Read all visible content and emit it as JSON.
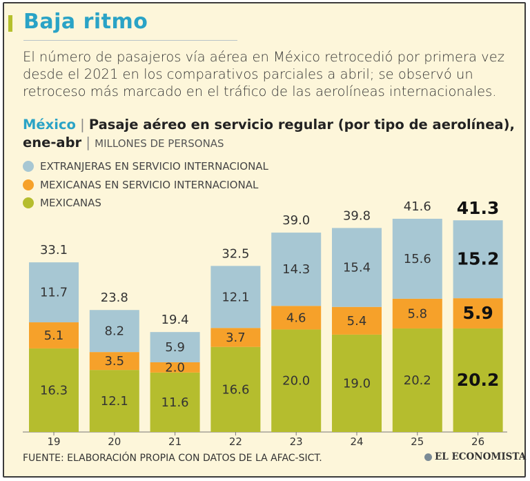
{
  "header": {
    "title": "Baja ritmo",
    "subtitle": "El número de pasajeros vía aérea en México retrocedió por primera vez desde el 2021 en los comparativos parciales a abril; se observó un retroceso más marcado en el tráfico de las aerolíneas internacionales."
  },
  "chart_heading": {
    "geo": "México",
    "separator": "|",
    "strong": "Pasaje aéreo en servicio regular (por tipo de aerolínea), ene-abr",
    "separator2": "|",
    "units": "MILLONES DE PERSONAS"
  },
  "footer": {
    "source": "FUENTE: ELABORACIÓN PROPIA CON DATOS DE LA AFAC-SICT.",
    "logo_text": "EL ECONOMISTA"
  },
  "colors": {
    "title": "#2aa3c6",
    "accent": "#b5c02c",
    "geo": "#2aa3c6",
    "extranjeras": "#a7c7d3",
    "mexicanas_internacional": "#f6a12a",
    "mexicanas": "#b5bd2e",
    "axis": "#777777"
  },
  "chart_data": {
    "type": "bar",
    "stacked": true,
    "categories": [
      "19",
      "20",
      "21",
      "22",
      "23",
      "24",
      "25",
      "26"
    ],
    "series": [
      {
        "key": "mexicanas",
        "name": "MEXICANAS",
        "values": [
          16.3,
          12.1,
          11.6,
          16.6,
          20.0,
          19.0,
          20.2,
          20.2
        ]
      },
      {
        "key": "mexicanas_internacional",
        "name": "MEXICANAS EN SERVICIO INTERNACIONAL",
        "values": [
          5.1,
          3.5,
          2.0,
          3.7,
          4.6,
          5.4,
          5.8,
          5.9
        ]
      },
      {
        "key": "extranjeras",
        "name": "EXTRANJERAS EN SERVICIO INTERNACIONAL",
        "values": [
          11.7,
          8.2,
          5.9,
          12.1,
          14.3,
          15.4,
          15.6,
          15.2
        ]
      }
    ],
    "totals": [
      33.1,
      23.8,
      19.4,
      32.5,
      39.0,
      39.8,
      41.6,
      41.3
    ],
    "value_labels": {
      "mexicanas": [
        "16.3",
        "12.1",
        "11.6",
        "16.6",
        "20.0",
        "19.0",
        "20.2",
        "20.2"
      ],
      "mexicanas_internacional": [
        "5.1",
        "3.5",
        "2.0",
        "3.7",
        "4.6",
        "5.4",
        "5.8",
        "5.9"
      ],
      "extranjeras": [
        "11.7",
        "8.2",
        "5.9",
        "12.1",
        "14.3",
        "15.4",
        "15.6",
        "15.2"
      ],
      "totals": [
        "33.1",
        "23.8",
        "19.4",
        "32.5",
        "39.0",
        "39.8",
        "41.6",
        "41.3"
      ]
    },
    "highlight_index": 7,
    "legend_order": [
      "extranjeras",
      "mexicanas_internacional",
      "mexicanas"
    ],
    "ylim": [
      0,
      41.6
    ],
    "grid": false
  }
}
